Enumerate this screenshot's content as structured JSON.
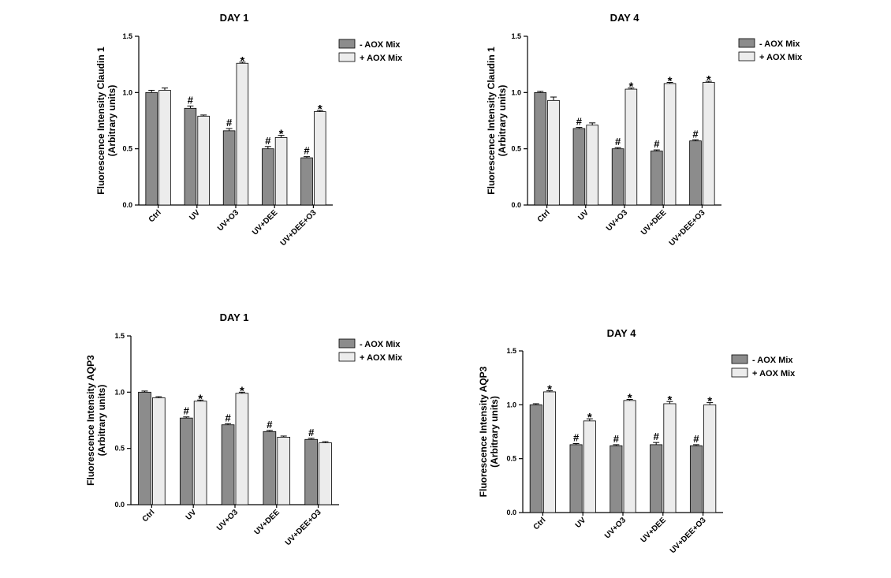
{
  "colors": {
    "minus": "#8c8c8c",
    "plus": "#ececec",
    "axis": "#000000"
  },
  "chart_data": [
    {
      "type": "bar",
      "title": "DAY 1",
      "ylabel_line1": "Fluorescence Intensity Claudin 1",
      "ylabel_line2": "(Arbitrary units)",
      "categories": [
        "Ctrl",
        "UV",
        "UV+O3",
        "UV+DEE",
        "UV+DEE+O3"
      ],
      "ylim": [
        0,
        1.5
      ],
      "yticks": [
        "0.0",
        "0.5",
        "1.0",
        "1.5"
      ],
      "legend": "top-right",
      "series": [
        {
          "name": "- AOX Mix",
          "values": [
            1.0,
            0.86,
            0.66,
            0.5,
            0.42
          ],
          "errors": [
            0.02,
            0.02,
            0.02,
            0.02,
            0.01
          ],
          "marks": [
            "",
            "#",
            "#",
            "#",
            "#"
          ]
        },
        {
          "name": "+ AOX Mix",
          "values": [
            1.02,
            0.79,
            1.26,
            0.6,
            0.83
          ],
          "errors": [
            0.02,
            0.01,
            0.01,
            0.02,
            0.01
          ],
          "marks": [
            "",
            "",
            "*",
            "*",
            "*"
          ]
        }
      ]
    },
    {
      "type": "bar",
      "title": "DAY 4",
      "ylabel_line1": "Fluorescence Intensity Claudin 1",
      "ylabel_line2": "(Arbitrary units)",
      "categories": [
        "Ctrl",
        "UV",
        "UV+O3",
        "UV+DEE",
        "UV+DEE+O3"
      ],
      "ylim": [
        0,
        1.5
      ],
      "yticks": [
        "0.0",
        "0.5",
        "1.0",
        "1.5"
      ],
      "legend": "top-right",
      "series": [
        {
          "name": "- AOX Mix",
          "values": [
            1.0,
            0.68,
            0.5,
            0.48,
            0.57
          ],
          "errors": [
            0.01,
            0.01,
            0.01,
            0.01,
            0.01
          ],
          "marks": [
            "",
            "#",
            "#",
            "#",
            "#"
          ]
        },
        {
          "name": "+ AOX Mix",
          "values": [
            0.93,
            0.71,
            1.03,
            1.08,
            1.09
          ],
          "errors": [
            0.03,
            0.02,
            0.01,
            0.01,
            0.01
          ],
          "marks": [
            "",
            "",
            "*",
            "*",
            "*"
          ]
        }
      ]
    },
    {
      "type": "bar",
      "title": "DAY 1",
      "ylabel_line1": "Fluorescence Intensity AQP3",
      "ylabel_line2": "(Arbitrary units)",
      "categories": [
        "Ctrl",
        "UV",
        "UV+O3",
        "UV+DEE",
        "UV+DEE+O3"
      ],
      "ylim": [
        0,
        1.5
      ],
      "yticks": [
        "0.0",
        "0.5",
        "1.0",
        "1.5"
      ],
      "legend": "top-right",
      "series": [
        {
          "name": "- AOX Mix",
          "values": [
            1.0,
            0.77,
            0.71,
            0.65,
            0.58
          ],
          "errors": [
            0.01,
            0.01,
            0.01,
            0.01,
            0.01
          ],
          "marks": [
            "",
            "#",
            "#",
            "#",
            "#"
          ]
        },
        {
          "name": "+ AOX Mix",
          "values": [
            0.95,
            0.92,
            0.99,
            0.6,
            0.55
          ],
          "errors": [
            0.01,
            0.01,
            0.01,
            0.01,
            0.01
          ],
          "marks": [
            "",
            "*",
            "*",
            "",
            ""
          ]
        }
      ]
    },
    {
      "type": "bar",
      "title": "DAY 4",
      "ylabel_line1": "Fluorescence Intensity AQP3",
      "ylabel_line2": "(Arbitrary units)",
      "categories": [
        "Ctrl",
        "UV",
        "UV+O3",
        "UV+DEE",
        "UV+DEE+O3"
      ],
      "ylim": [
        0,
        1.5
      ],
      "yticks": [
        "0.0",
        "0.5",
        "1.0",
        "1.5"
      ],
      "legend": "top-right",
      "series": [
        {
          "name": "- AOX Mix",
          "values": [
            1.0,
            0.63,
            0.62,
            0.63,
            0.62
          ],
          "errors": [
            0.01,
            0.01,
            0.01,
            0.02,
            0.01
          ],
          "marks": [
            "",
            "#",
            "#",
            "#",
            "#"
          ]
        },
        {
          "name": "+ AOX Mix",
          "values": [
            1.12,
            0.85,
            1.04,
            1.01,
            1.0
          ],
          "errors": [
            0.01,
            0.02,
            0.01,
            0.02,
            0.02
          ],
          "marks": [
            "*",
            "*",
            "*",
            "*",
            "*"
          ]
        }
      ]
    }
  ]
}
